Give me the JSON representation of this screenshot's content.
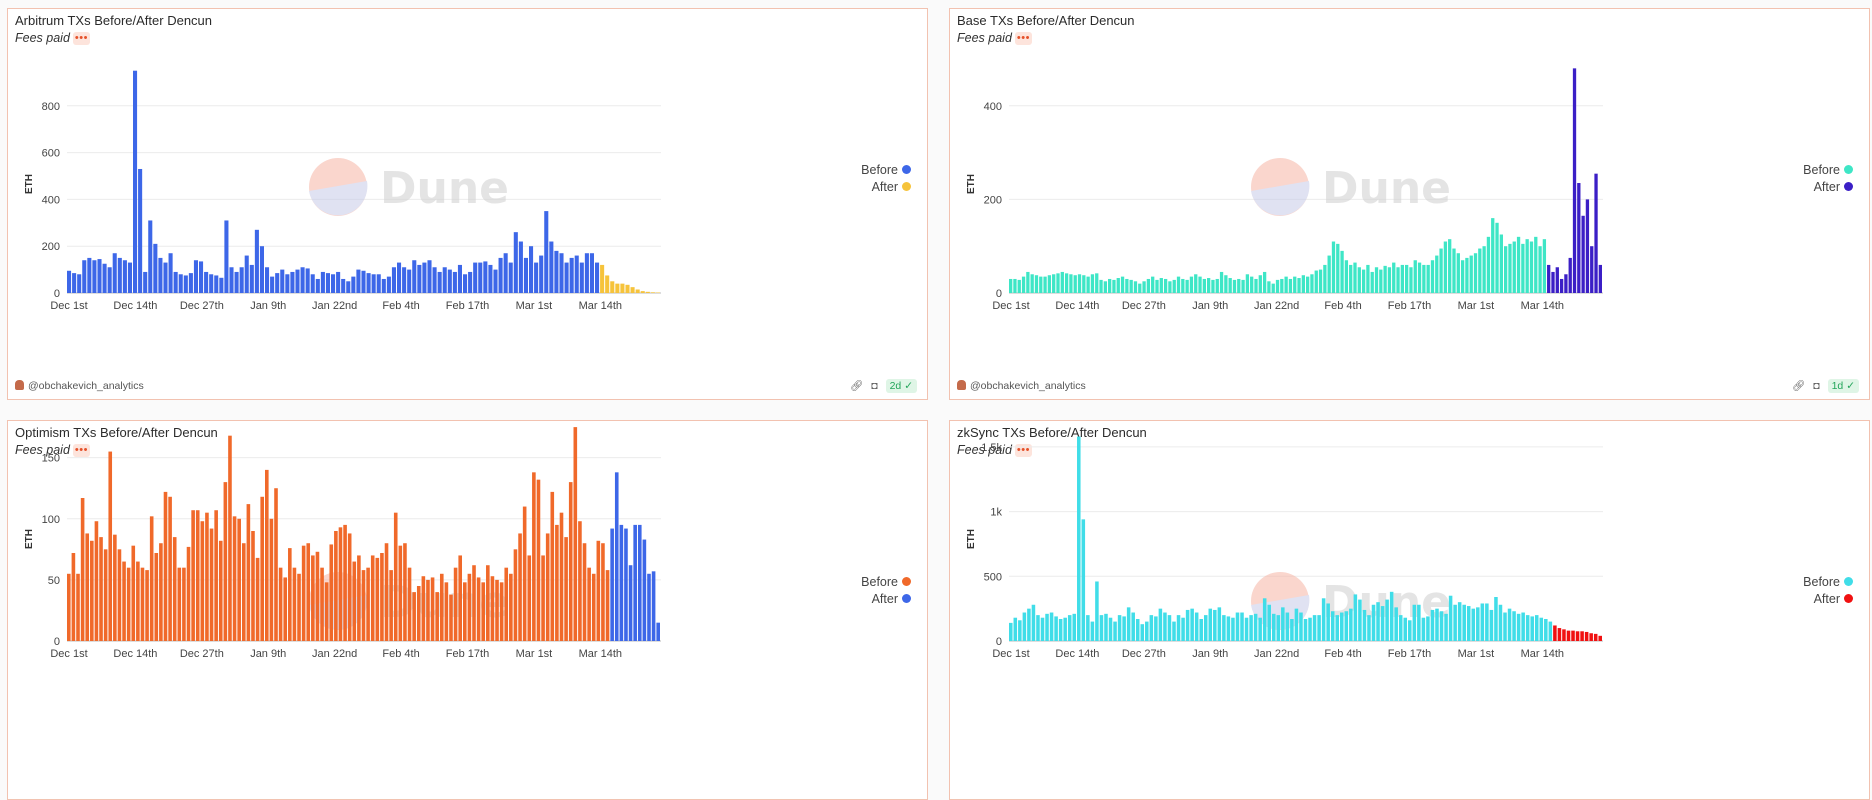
{
  "panels": [
    {
      "title": "Arbitrum TXs Before/After Dencun",
      "subtitle": "Fees paid",
      "dots": "•••",
      "author": "@obchakevich_analytics",
      "age": "2d",
      "link_icon": "link-icon",
      "camera_icon": "camera-icon",
      "check_icon": "check-circle-icon",
      "watermark": "Dune",
      "chart_data": {
        "type": "bar",
        "ylabel": "ETH",
        "ylim": [
          0,
          1000
        ],
        "yticks": [
          {
            "v": 0,
            "label": "0"
          },
          {
            "v": 200,
            "label": "200"
          },
          {
            "v": 400,
            "label": "400"
          },
          {
            "v": 600,
            "label": "600"
          },
          {
            "v": 800,
            "label": "800"
          }
        ],
        "xticks": [
          "Dec 1st",
          "Dec 14th",
          "Dec 27th",
          "Jan 9th",
          "Jan 22nd",
          "Feb 4th",
          "Feb 17th",
          "Mar 1st",
          "Mar 14th"
        ],
        "legend_position": "right",
        "grid": true,
        "series": [
          {
            "name": "Before",
            "color": "#3d67e8",
            "values": [
              95,
              85,
              80,
              140,
              150,
              140,
              145,
              125,
              110,
              170,
              150,
              140,
              130,
              950,
              530,
              90,
              310,
              210,
              150,
              130,
              170,
              90,
              80,
              75,
              85,
              140,
              135,
              90,
              80,
              75,
              65,
              310,
              110,
              90,
              110,
              160,
              120,
              270,
              200,
              110,
              70,
              85,
              100,
              80,
              90,
              100,
              110,
              105,
              80,
              60,
              90,
              85,
              80,
              90,
              60,
              50,
              70,
              100,
              95,
              85,
              80,
              80,
              60,
              70,
              110,
              130,
              110,
              100,
              140,
              120,
              130,
              140,
              110,
              90,
              110,
              100,
              90,
              120,
              80,
              90,
              130,
              130,
              135,
              120,
              100,
              150,
              170,
              130,
              260,
              220,
              150,
              200,
              130,
              160,
              350,
              220,
              180,
              170,
              130,
              150,
              160,
              130,
              170,
              170,
              130
            ]
          },
          {
            "name": "After",
            "color": "#f6c33b",
            "values": [
              120,
              75,
              50,
              40,
              40,
              35,
              25,
              15,
              8,
              5,
              3,
              2
            ]
          }
        ]
      }
    },
    {
      "title": "Base TXs Before/After Dencun",
      "subtitle": "Fees paid",
      "dots": "•••",
      "author": "@obchakevich_analytics",
      "age": "1d",
      "link_icon": "link-icon",
      "camera_icon": "camera-icon",
      "check_icon": "check-circle-icon",
      "watermark": "Dune",
      "chart_data": {
        "type": "bar",
        "ylabel": "ETH",
        "ylim": [
          0,
          500
        ],
        "yticks": [
          {
            "v": 0,
            "label": "0"
          },
          {
            "v": 200,
            "label": "200"
          },
          {
            "v": 400,
            "label": "400"
          }
        ],
        "xticks": [
          "Dec 1st",
          "Dec 14th",
          "Dec 27th",
          "Jan 9th",
          "Jan 22nd",
          "Feb 4th",
          "Feb 17th",
          "Mar 1st",
          "Mar 14th"
        ],
        "legend_position": "right",
        "grid": true,
        "series": [
          {
            "name": "Before",
            "color": "#3ee6c6",
            "values": [
              30,
              30,
              28,
              35,
              45,
              40,
              38,
              35,
              35,
              38,
              40,
              42,
              45,
              42,
              40,
              38,
              40,
              38,
              35,
              40,
              42,
              28,
              25,
              30,
              28,
              32,
              35,
              30,
              28,
              25,
              20,
              25,
              30,
              35,
              28,
              32,
              30,
              25,
              28,
              35,
              30,
              28,
              35,
              40,
              35,
              30,
              32,
              28,
              30,
              45,
              38,
              32,
              28,
              30,
              28,
              40,
              35,
              30,
              38,
              45,
              25,
              20,
              28,
              30,
              35,
              30,
              35,
              32,
              38,
              35,
              40,
              48,
              50,
              60,
              80,
              110,
              105,
              90,
              70,
              60,
              65,
              55,
              50,
              60,
              45,
              55,
              50,
              58,
              55,
              65,
              55,
              60,
              60,
              55,
              70,
              65,
              60,
              60,
              70,
              80,
              95,
              110,
              115,
              95,
              85,
              70,
              75,
              80,
              85,
              95,
              100,
              120,
              160,
              150,
              125,
              100,
              105,
              110,
              120,
              105,
              115,
              110,
              120,
              100,
              115
            ]
          },
          {
            "name": "After",
            "color": "#3b1fc6",
            "values": [
              60,
              45,
              55,
              30,
              40,
              75,
              480,
              235,
              165,
              200,
              100,
              255,
              60
            ]
          }
        ]
      }
    },
    {
      "title": "Optimism TXs Before/After Dencun",
      "subtitle": "Fees paid",
      "dots": "•••",
      "author": "",
      "age": "",
      "link_icon": "link-icon",
      "camera_icon": "camera-icon",
      "check_icon": "check-circle-icon",
      "watermark": "Dune",
      "chart_data": {
        "type": "bar",
        "ylabel": "ETH",
        "ylim": [
          0,
          180
        ],
        "yticks": [
          {
            "v": 0,
            "label": "0"
          },
          {
            "v": 50,
            "label": "50"
          },
          {
            "v": 100,
            "label": "100"
          },
          {
            "v": 150,
            "label": "150"
          }
        ],
        "xticks": [
          "Dec 1st",
          "Dec 14th",
          "Dec 27th",
          "Jan 9th",
          "Jan 22nd",
          "Feb 4th",
          "Feb 17th",
          "Mar 1st",
          "Mar 14th"
        ],
        "legend_position": "right",
        "grid": true,
        "series": [
          {
            "name": "Before",
            "color": "#f0692a",
            "values": [
              55,
              72,
              55,
              117,
              88,
              82,
              98,
              85,
              75,
              155,
              87,
              75,
              65,
              60,
              78,
              65,
              60,
              58,
              102,
              72,
              80,
              122,
              118,
              85,
              60,
              60,
              77,
              107,
              107,
              98,
              105,
              92,
              107,
              82,
              130,
              168,
              102,
              100,
              80,
              112,
              90,
              68,
              118,
              140,
              100,
              125,
              60,
              52,
              76,
              60,
              55,
              78,
              80,
              70,
              73,
              60,
              48,
              79,
              90,
              93,
              95,
              88,
              65,
              70,
              58,
              60,
              70,
              68,
              72,
              80,
              58,
              105,
              78,
              80,
              60,
              40,
              45,
              53,
              50,
              52,
              40,
              55,
              48,
              38,
              60,
              70,
              48,
              55,
              62,
              52,
              48,
              62,
              53,
              50,
              48,
              60,
              55,
              75,
              88,
              110,
              70,
              138,
              132,
              70,
              88,
              122,
              95,
              105,
              85,
              130,
              175,
              98,
              80,
              60,
              55,
              82,
              80,
              58
            ]
          },
          {
            "name": "After",
            "color": "#3d67e8",
            "values": [
              92,
              138,
              95,
              92,
              62,
              95,
              95,
              83,
              55,
              57,
              15
            ]
          }
        ]
      }
    },
    {
      "title": "zkSync TXs Before/After Dencun",
      "subtitle": "Fees paid",
      "dots": "•••",
      "author": "",
      "age": "",
      "link_icon": "link-icon",
      "camera_icon": "camera-icon",
      "check_icon": "check-circle-icon",
      "watermark": "Dune",
      "chart_data": {
        "type": "bar",
        "ylabel": "ETH",
        "ylim": [
          0,
          1700
        ],
        "yticks": [
          {
            "v": 0,
            "label": "0"
          },
          {
            "v": 500,
            "label": "500"
          },
          {
            "v": 1000,
            "label": "1k"
          },
          {
            "v": 1500,
            "label": "1.5k"
          }
        ],
        "xticks": [
          "Dec 1st",
          "Dec 14th",
          "Dec 27th",
          "Jan 9th",
          "Jan 22nd",
          "Feb 4th",
          "Feb 17th",
          "Mar 1st",
          "Mar 14th"
        ],
        "legend_position": "right",
        "grid": true,
        "series": [
          {
            "name": "Before",
            "color": "#40dde8",
            "values": [
              140,
              180,
              160,
              220,
              250,
              280,
              200,
              180,
              210,
              220,
              190,
              170,
              180,
              200,
              210,
              1580,
              940,
              200,
              150,
              460,
              200,
              210,
              180,
              150,
              200,
              190,
              260,
              220,
              170,
              130,
              150,
              200,
              190,
              250,
              220,
              200,
              150,
              200,
              180,
              240,
              250,
              220,
              170,
              200,
              250,
              240,
              260,
              200,
              190,
              180,
              220,
              220,
              180,
              200,
              210,
              180,
              330,
              280,
              210,
              200,
              260,
              220,
              170,
              250,
              220,
              170,
              180,
              200,
              200,
              330,
              290,
              230,
              200,
              220,
              230,
              250,
              360,
              320,
              240,
              200,
              280,
              300,
              270,
              320,
              380,
              260,
              200,
              180,
              160,
              280,
              280,
              180,
              190,
              240,
              250,
              230,
              210,
              350,
              280,
              300,
              280,
              270,
              250,
              260,
              290,
              290,
              240,
              340,
              280,
              220,
              250,
              230,
              210,
              220,
              200,
              190,
              200,
              180,
              170,
              150
            ]
          },
          {
            "name": "After",
            "color": "#f01111",
            "values": [
              120,
              100,
              90,
              80,
              80,
              75,
              75,
              70,
              60,
              55,
              40
            ]
          }
        ]
      }
    }
  ]
}
